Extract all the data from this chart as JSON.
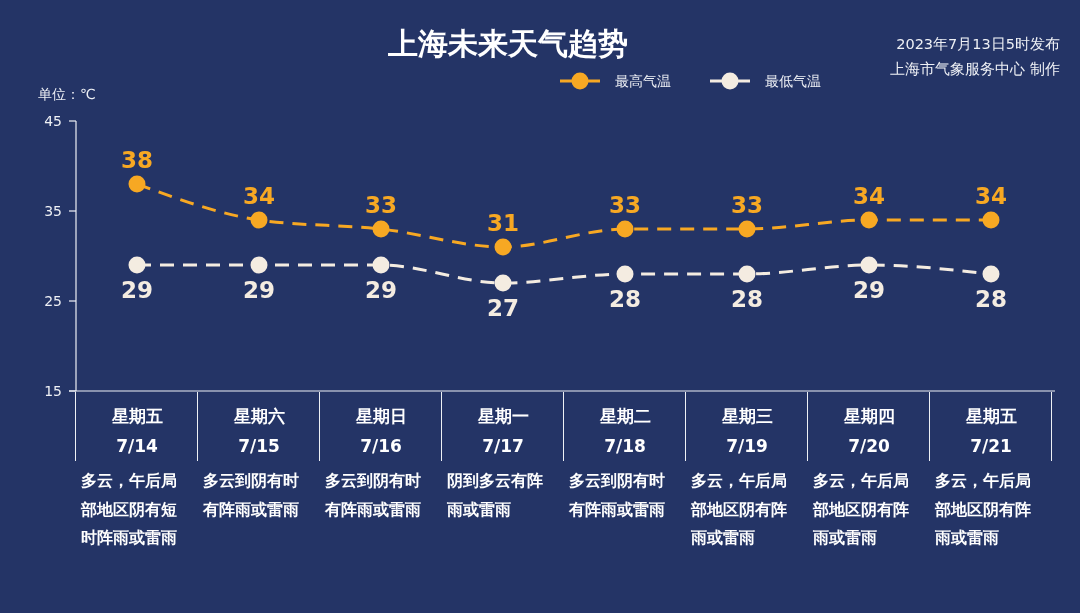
{
  "chart_data": {
    "type": "line",
    "title": "上海未来天气趋势",
    "ylabel": "单位：℃",
    "categories": [
      "星期五\n7/14",
      "星期六\n7/15",
      "星期日\n7/16",
      "星期一\n7/17",
      "星期二\n7/18",
      "星期三\n7/19",
      "星期四\n7/20",
      "星期五\n7/21"
    ],
    "series": [
      {
        "name": "最高气温",
        "color": "#f7a823",
        "values": [
          38,
          34,
          33,
          31,
          33,
          33,
          34,
          34
        ]
      },
      {
        "name": "最低气温",
        "color": "#f4ece1",
        "values": [
          29,
          29,
          29,
          27,
          28,
          28,
          29,
          28
        ]
      }
    ],
    "ylim": [
      15,
      45
    ],
    "yticks": [
      15,
      25,
      35,
      45
    ],
    "data_labels": true,
    "legend": "top",
    "marker": "circle",
    "line_style": "dashed",
    "annotations": [
      "2023年7月13日5时发布",
      "上海市气象服务中心 制作",
      "多云，午后局部地区阴有短时阵雨或雷雨",
      "多云到阴有时有阵雨或雷雨",
      "多云到阴有时有阵雨或雷雨",
      "阴到多云有阵雨或雷雨",
      "多云到阴有时有阵雨或雷雨",
      "多云，午后局部地区阴有阵雨或雷雨",
      "多云，午后局部地区阴有阵雨或雷雨",
      "多云，午后局部地区阴有阵雨或雷雨"
    ]
  }
}
